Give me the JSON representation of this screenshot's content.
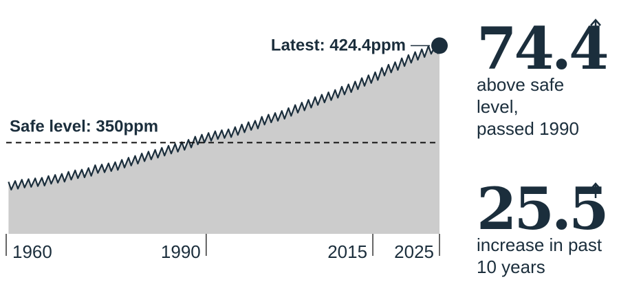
{
  "chart_data": {
    "type": "area",
    "x": [
      1960.35,
      1960.75,
      1961.35,
      1961.75,
      1962.35,
      1962.75,
      1963.35,
      1963.75,
      1964.35,
      1964.75,
      1965.35,
      1965.75,
      1966.35,
      1966.75,
      1967.35,
      1967.75,
      1968.35,
      1968.75,
      1969.35,
      1969.75,
      1970.35,
      1970.75,
      1971.35,
      1971.75,
      1972.35,
      1972.75,
      1973.35,
      1973.75,
      1974.35,
      1974.75,
      1975.35,
      1975.75,
      1976.35,
      1976.75,
      1977.35,
      1977.75,
      1978.35,
      1978.75,
      1979.35,
      1979.75,
      1980.35,
      1980.75,
      1981.35,
      1981.75,
      1982.35,
      1982.75,
      1983.35,
      1983.75,
      1984.35,
      1984.75,
      1985.35,
      1985.75,
      1986.35,
      1986.75,
      1987.35,
      1987.75,
      1988.35,
      1988.75,
      1989.35,
      1989.75,
      1990.35,
      1990.75,
      1991.35,
      1991.75,
      1992.35,
      1992.75,
      1993.35,
      1993.75,
      1994.35,
      1994.75,
      1995.35,
      1995.75,
      1996.35,
      1996.75,
      1997.35,
      1997.75,
      1998.35,
      1998.75,
      1999.35,
      1999.75,
      2000.35,
      2000.75,
      2001.35,
      2001.75,
      2002.35,
      2002.75,
      2003.35,
      2003.75,
      2004.35,
      2004.75,
      2005.35,
      2005.75,
      2006.35,
      2006.75,
      2007.35,
      2007.75,
      2008.35,
      2008.75,
      2009.35,
      2009.75,
      2010.35,
      2010.75,
      2011.35,
      2011.75,
      2012.35,
      2012.75,
      2013.35,
      2013.75,
      2014.35,
      2014.75,
      2015.35,
      2015.75,
      2016.35,
      2016.75,
      2017.35,
      2017.75,
      2018.35,
      2018.75,
      2019.35,
      2019.75,
      2020.35,
      2020.75,
      2021.35,
      2021.75,
      2022.35,
      2022.75,
      2023.35,
      2023.75,
      2024.35,
      2024.75,
      2025
    ],
    "values": [
      319.9,
      313.9,
      320.6,
      314.6,
      321.5,
      315.5,
      322.0,
      316.0,
      322.6,
      316.6,
      323.0,
      317.0,
      324.4,
      318.4,
      325.2,
      319.2,
      326.0,
      320.0,
      327.6,
      321.6,
      328.7,
      322.7,
      329.3,
      323.3,
      330.5,
      324.5,
      332.7,
      326.7,
      333.2,
      327.2,
      334.1,
      328.1,
      335.0,
      329.0,
      336.8,
      330.8,
      338.4,
      332.4,
      339.8,
      333.8,
      341.7,
      335.7,
      343.1,
      337.1,
      344.4,
      338.4,
      346.0,
      340.0,
      347.6,
      341.6,
      349.0,
      343.0,
      350.4,
      344.4,
      352.2,
      346.2,
      354.6,
      348.6,
      356.1,
      350.1,
      357.4,
      351.4,
      358.7,
      352.7,
      359.5,
      353.5,
      360.2,
      354.2,
      361.9,
      355.9,
      363.9,
      357.9,
      365.7,
      359.7,
      366.8,
      360.8,
      369.8,
      363.8,
      371.5,
      365.5,
      372.7,
      366.7,
      374.3,
      368.3,
      376.5,
      370.5,
      378.9,
      372.9,
      380.7,
      374.7,
      382.8,
      376.8,
      384.9,
      378.9,
      386.8,
      380.8,
      388.6,
      382.6,
      390.4,
      384.4,
      392.9,
      386.9,
      394.7,
      388.7,
      396.9,
      390.9,
      399.5,
      393.5,
      401.7,
      395.7,
      404.0,
      398.0,
      407.4,
      401.4,
      409.8,
      403.8,
      411.7,
      405.7,
      414.7,
      408.7,
      417.2,
      411.2,
      419.5,
      413.5,
      421.6,
      415.6,
      424.1,
      418.1,
      424.2,
      418.5,
      424.4
    ],
    "xlim": [
      1960,
      2025
    ],
    "ylim": [
      280,
      459.4
    ],
    "xticks": [
      1960,
      1990,
      2015,
      2025
    ],
    "color": "#1b2e3c",
    "fill": "#cccccc",
    "safe_level": 350,
    "safe_label": "Safe level: 350ppm",
    "latest": 424.4,
    "latest_label": "Latest: 424.4ppm"
  },
  "stats": [
    {
      "value": 74.4,
      "label_lines": [
        "above safe",
        "level,",
        "passed 1990"
      ]
    },
    {
      "value": 25.5,
      "label_lines": [
        "increase in past",
        "10 years"
      ]
    }
  ]
}
